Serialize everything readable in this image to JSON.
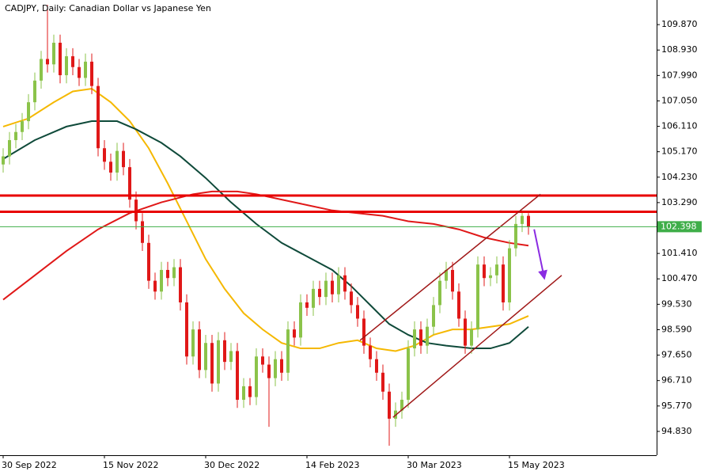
{
  "chart_data": {
    "type": "candlestick",
    "title": "CADJPY, Daily:  Canadian Dollar vs Japanese Yen",
    "open": [
      104.7,
      105.0,
      105.6,
      105.9,
      106.3,
      107.0,
      107.8,
      108.6,
      108.4,
      109.2,
      108.0,
      108.7,
      108.3,
      107.9,
      108.5,
      107.6,
      105.3,
      104.8,
      104.4,
      105.2,
      104.6,
      103.4,
      102.6,
      101.8,
      100.4,
      100.0,
      100.8,
      100.5,
      100.9,
      99.6,
      97.6,
      98.6,
      97.1,
      98.1,
      96.6,
      98.2,
      97.4,
      97.8,
      96.0,
      96.5,
      96.1,
      97.6,
      97.3,
      96.8,
      97.5,
      97.0,
      98.6,
      98.3,
      99.6,
      99.4,
      100.1,
      99.8,
      100.4,
      99.9,
      100.6,
      100.0,
      99.5,
      99.0,
      98.0,
      97.5,
      97.0,
      96.3,
      95.3,
      95.6,
      96.0,
      97.9,
      98.6,
      98.0,
      98.7,
      99.5,
      100.4,
      100.8,
      100.0,
      99.0,
      98.0,
      98.6,
      101.0,
      100.5,
      100.6,
      101.0,
      99.6,
      101.6,
      102.5,
      102.8
    ],
    "high": [
      105.3,
      105.9,
      106.2,
      106.6,
      107.3,
      108.1,
      108.9,
      110.6,
      109.5,
      109.5,
      109.0,
      109.0,
      108.6,
      108.8,
      108.8,
      107.9,
      105.6,
      105.1,
      105.5,
      105.5,
      104.9,
      103.7,
      102.9,
      102.1,
      100.7,
      101.1,
      101.1,
      101.2,
      101.2,
      99.9,
      98.9,
      98.9,
      98.4,
      98.4,
      98.5,
      98.5,
      98.1,
      98.1,
      96.8,
      96.8,
      97.9,
      97.9,
      97.6,
      97.8,
      97.8,
      98.9,
      98.9,
      99.9,
      99.9,
      100.4,
      100.4,
      100.7,
      100.7,
      100.9,
      100.9,
      100.3,
      99.8,
      99.3,
      98.3,
      97.8,
      97.3,
      96.6,
      95.9,
      96.3,
      98.2,
      98.9,
      98.9,
      99.0,
      99.8,
      100.7,
      101.1,
      101.1,
      100.3,
      99.3,
      98.9,
      101.3,
      101.3,
      100.9,
      101.3,
      101.3,
      101.9,
      102.8,
      103.0,
      102.9
    ],
    "low": [
      104.4,
      104.7,
      105.3,
      105.6,
      106.0,
      106.7,
      107.5,
      108.1,
      108.1,
      107.7,
      107.7,
      108.0,
      107.6,
      107.6,
      107.3,
      105.0,
      104.5,
      104.1,
      104.1,
      104.3,
      103.1,
      102.3,
      101.5,
      100.1,
      99.7,
      99.7,
      100.2,
      100.2,
      99.3,
      97.3,
      97.3,
      96.8,
      96.8,
      96.3,
      96.3,
      97.1,
      97.1,
      95.7,
      95.7,
      95.8,
      95.8,
      97.0,
      95.0,
      96.5,
      96.7,
      96.7,
      98.0,
      98.0,
      99.1,
      99.1,
      99.5,
      99.5,
      99.6,
      99.6,
      99.7,
      99.2,
      98.7,
      97.7,
      97.2,
      96.7,
      96.0,
      94.3,
      95.0,
      95.3,
      95.7,
      97.6,
      97.7,
      97.7,
      98.4,
      99.2,
      100.1,
      99.7,
      98.7,
      97.7,
      97.7,
      98.3,
      100.2,
      100.2,
      100.3,
      99.3,
      99.3,
      101.3,
      102.2,
      102.1
    ],
    "close": [
      105.0,
      105.6,
      105.9,
      106.3,
      107.0,
      107.8,
      108.6,
      108.4,
      109.2,
      108.0,
      108.7,
      108.3,
      107.9,
      108.5,
      107.6,
      105.3,
      104.8,
      104.4,
      105.2,
      104.6,
      103.4,
      102.6,
      101.8,
      100.4,
      100.0,
      100.8,
      100.5,
      100.9,
      99.6,
      97.6,
      98.6,
      97.1,
      98.1,
      96.6,
      98.2,
      97.4,
      97.8,
      96.0,
      96.5,
      96.1,
      97.6,
      97.3,
      96.8,
      97.5,
      97.0,
      98.6,
      98.3,
      99.6,
      99.4,
      100.1,
      99.8,
      100.4,
      99.9,
      100.6,
      100.0,
      99.5,
      99.0,
      98.0,
      97.5,
      97.0,
      96.3,
      95.3,
      95.6,
      96.0,
      97.9,
      98.6,
      98.0,
      98.7,
      99.5,
      100.4,
      100.8,
      100.0,
      99.0,
      98.0,
      98.6,
      101.0,
      100.5,
      100.6,
      101.0,
      99.6,
      101.6,
      102.5,
      102.8,
      102.398
    ],
    "color_up": "#8bc34a",
    "color_down": "#e01818",
    "ylim": [
      93.95,
      110.78
    ],
    "yticks": [
      {
        "value": 109.87,
        "label": "109.870"
      },
      {
        "value": 108.93,
        "label": "108.930"
      },
      {
        "value": 107.99,
        "label": "107.990"
      },
      {
        "value": 107.05,
        "label": "107.050"
      },
      {
        "value": 106.11,
        "label": "106.110"
      },
      {
        "value": 105.17,
        "label": "105.170"
      },
      {
        "value": 104.23,
        "label": "104.230"
      },
      {
        "value": 103.29,
        "label": "103.290"
      },
      {
        "value": 101.41,
        "label": "101.410"
      },
      {
        "value": 100.47,
        "label": "100.470"
      },
      {
        "value": 99.53,
        "label": "99.530"
      },
      {
        "value": 98.59,
        "label": "98.590"
      },
      {
        "value": 97.65,
        "label": "97.650"
      },
      {
        "value": 96.71,
        "label": "96.710"
      },
      {
        "value": 95.77,
        "label": "95.770"
      },
      {
        "value": 94.83,
        "label": "94.830"
      }
    ],
    "xticks": [
      {
        "value": 0,
        "label": "30 Sep 2022"
      },
      {
        "value": 16,
        "label": "15 Nov 2022"
      },
      {
        "value": 32,
        "label": "30 Dec 2022"
      },
      {
        "value": 48,
        "label": "14 Feb 2023"
      },
      {
        "value": 64,
        "label": "30 Mar 2023"
      },
      {
        "value": 80,
        "label": "15 May 2023"
      }
    ],
    "moving_averages": [
      {
        "color": "#f5b800",
        "x": [
          0,
          4,
          8,
          11,
          14,
          17,
          20,
          23,
          26,
          29,
          32,
          35,
          38,
          41,
          44,
          47,
          50,
          53,
          56,
          59,
          62,
          65,
          68,
          71,
          74,
          77,
          80,
          83
        ],
        "values": [
          106.1,
          106.4,
          107.0,
          107.4,
          107.5,
          107.0,
          106.3,
          105.3,
          104.0,
          102.6,
          101.2,
          100.1,
          99.2,
          98.6,
          98.1,
          97.9,
          97.9,
          98.1,
          98.2,
          97.9,
          97.8,
          98.0,
          98.4,
          98.6,
          98.6,
          98.7,
          98.8,
          99.1
        ]
      },
      {
        "color": "#0f4a3a",
        "x": [
          0,
          5,
          10,
          14,
          18,
          21,
          25,
          28,
          32,
          36,
          40,
          44,
          48,
          52,
          55,
          58,
          61,
          64,
          67,
          70,
          74,
          77,
          80,
          83
        ],
        "values": [
          104.9,
          105.6,
          106.1,
          106.3,
          106.3,
          106.0,
          105.5,
          105.0,
          104.2,
          103.3,
          102.5,
          101.8,
          101.3,
          100.8,
          100.2,
          99.5,
          98.8,
          98.4,
          98.1,
          98.0,
          97.9,
          97.9,
          98.1,
          98.7
        ]
      },
      {
        "color": "#e01818",
        "x": [
          0,
          5,
          10,
          15,
          20,
          25,
          30,
          33,
          37,
          40,
          44,
          48,
          52,
          56,
          60,
          64,
          68,
          72,
          76,
          80,
          83
        ],
        "values": [
          99.7,
          100.6,
          101.5,
          102.3,
          102.9,
          103.3,
          103.6,
          103.7,
          103.7,
          103.6,
          103.4,
          103.2,
          103.0,
          102.9,
          102.8,
          102.6,
          102.5,
          102.3,
          102.0,
          101.8,
          101.7
        ]
      }
    ],
    "levels": [
      {
        "value": 103.55,
        "color": "#e80000"
      },
      {
        "value": 102.95,
        "color": "#e80000"
      }
    ],
    "last_price": 102.398,
    "last_price_color": "#3fae49",
    "trendlines": [
      {
        "x": [
          56.4,
          84.9
        ],
        "y": [
          98.2,
          103.6
        ],
        "color": "#a01818"
      },
      {
        "x": [
          61.6,
          88.25
        ],
        "y": [
          95.35,
          100.6
        ],
        "color": "#a01818"
      }
    ],
    "arrow": {
      "x": [
        83.9,
        85.5
      ],
      "y": [
        102.3,
        100.5
      ],
      "color": "#8a2be2"
    }
  }
}
